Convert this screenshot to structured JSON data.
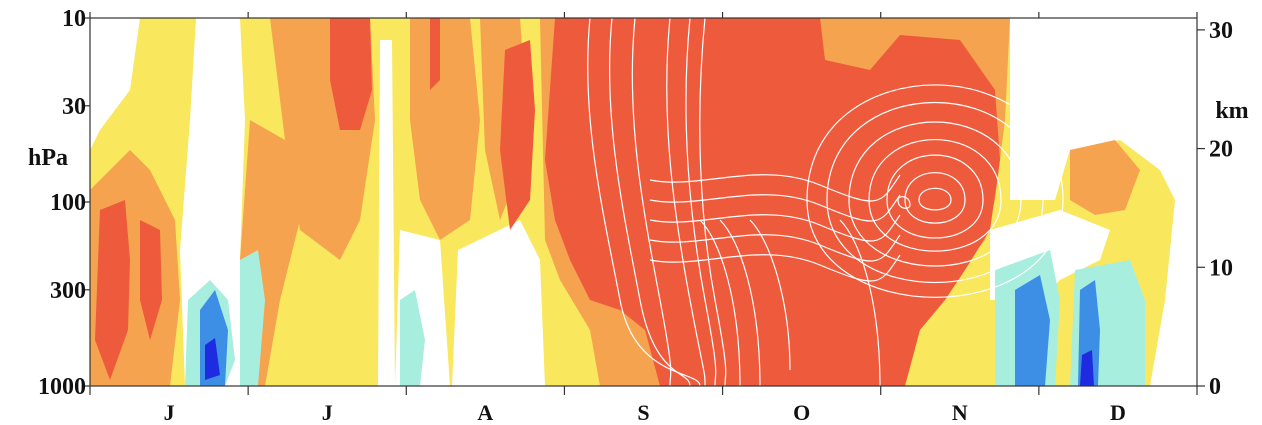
{
  "chart_data": {
    "type": "heatmap",
    "title": "",
    "xlabel": "",
    "ylabel_left": "hPa",
    "ylabel_right": "km",
    "x_tick_labels": [
      "J",
      "J",
      "A",
      "S",
      "O",
      "N",
      "D"
    ],
    "y_left_ticks": [
      {
        "value": 10,
        "label": "10"
      },
      {
        "value": 30,
        "label": "30"
      },
      {
        "value": 100,
        "label": "100"
      },
      {
        "value": 300,
        "label": "300"
      },
      {
        "value": 1000,
        "label": "1000"
      }
    ],
    "y_left_scale": "log",
    "y_left_range": [
      1000,
      10
    ],
    "y_right_ticks": [
      {
        "value": 0,
        "label": "0"
      },
      {
        "value": 10,
        "label": "10"
      },
      {
        "value": 20,
        "label": "20"
      },
      {
        "value": 30,
        "label": "30"
      }
    ],
    "y_right_range": [
      0,
      31
    ],
    "grid": false,
    "legend": "none",
    "colors": {
      "level_neg3": "#1e2be0",
      "level_neg2": "#3d8fe6",
      "level_neg1": "#a8eedf",
      "level_0": "#ffffff",
      "level_1": "#f9e75e",
      "level_2": "#f5a34e",
      "level_3": "#ee5a3c",
      "contour": "#ffffff"
    }
  }
}
